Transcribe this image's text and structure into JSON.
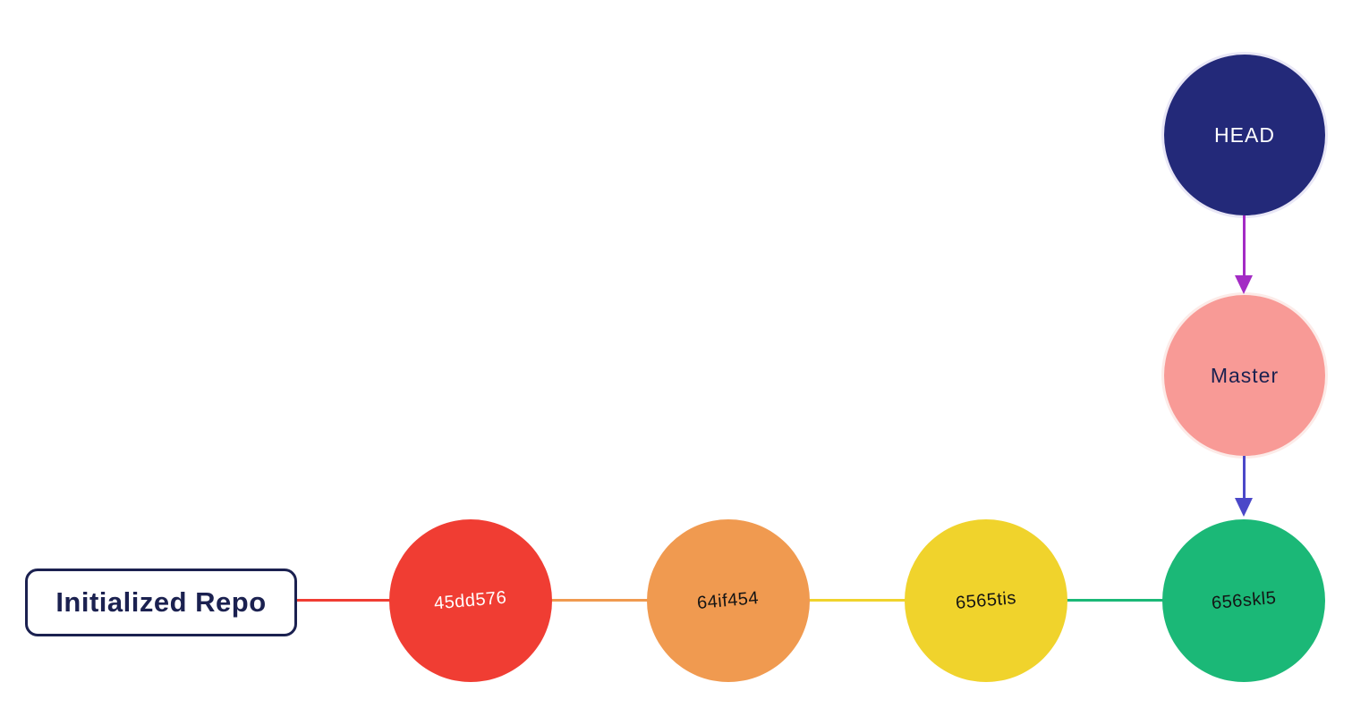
{
  "graph": {
    "init_label": "Initialized Repo",
    "head": {
      "label": "HEAD",
      "color": "#232979",
      "text_color": "#ffffff"
    },
    "branch": {
      "label": "Master",
      "color": "#F89A96",
      "text_color": "#1B2150"
    },
    "commits": [
      {
        "id": "45dd576",
        "color": "#F03D33",
        "text_color": "#ffffff"
      },
      {
        "id": "64if454",
        "color": "#F09A50",
        "text_color": "#141414"
      },
      {
        "id": "6565tis",
        "color": "#F0D32C",
        "text_color": "#141414"
      },
      {
        "id": "656skl5",
        "color": "#1BB877",
        "text_color": "#141414"
      }
    ],
    "connectors": [
      {
        "from": "Initialized Repo",
        "to": "45dd576",
        "color": "#F03D33"
      },
      {
        "from": "45dd576",
        "to": "64if454",
        "color": "#F09A50"
      },
      {
        "from": "64if454",
        "to": "6565tis",
        "color": "#F0D32C"
      },
      {
        "from": "6565tis",
        "to": "656skl5",
        "color": "#1BB877"
      }
    ],
    "arrows": [
      {
        "from": "HEAD",
        "to": "Master",
        "color": "#A32BC4"
      },
      {
        "from": "Master",
        "to": "656skl5",
        "color": "#4B48C8"
      }
    ]
  },
  "colors": {
    "background": "#ffffff",
    "box_border": "#1B2150",
    "box_text": "#1B2150"
  }
}
